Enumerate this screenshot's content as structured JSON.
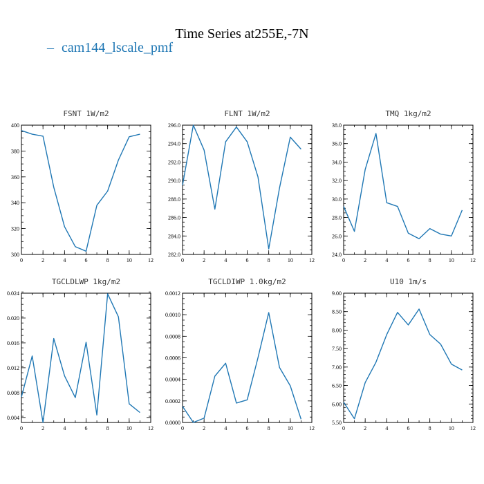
{
  "title": "Time Series at255E,-7N",
  "legend": {
    "marker": "–",
    "label": "cam144_lscale_pmf",
    "color": "#1f77b4"
  },
  "chart_data": [
    {
      "type": "line",
      "title": "FSNT   1W/m2",
      "x": [
        0,
        1,
        2,
        3,
        4,
        5,
        6,
        7,
        8,
        9,
        10,
        11
      ],
      "series": [
        {
          "values": [
            395.8,
            393.0,
            391.5,
            352.0,
            321.5,
            306.0,
            302.5,
            338.0,
            349.0,
            373.0,
            391.0,
            393.0
          ]
        }
      ],
      "xlim": [
        0,
        12
      ],
      "ylim": [
        300,
        400
      ],
      "xticks": [
        0,
        2,
        4,
        6,
        8,
        10,
        12
      ],
      "xtick_labels": [
        "0",
        "2",
        "4",
        "6",
        "8",
        "10",
        "12"
      ],
      "yticks": [
        300,
        320,
        340,
        360,
        380,
        400
      ],
      "ytick_labels": [
        "300",
        "320",
        "340",
        "360",
        "380",
        "400"
      ],
      "xminor": 1,
      "yminor": 5,
      "color": "#1f77b4"
    },
    {
      "type": "line",
      "title": "FLNT   1W/m2",
      "x": [
        0,
        1,
        2,
        3,
        4,
        5,
        6,
        7,
        8,
        9,
        10,
        11
      ],
      "series": [
        {
          "values": [
            289.5,
            296.0,
            293.3,
            286.9,
            294.2,
            295.8,
            294.2,
            290.4,
            282.6,
            289.2,
            294.7,
            293.4
          ]
        }
      ],
      "xlim": [
        0,
        12
      ],
      "ylim": [
        282,
        296
      ],
      "xticks": [
        0,
        2,
        4,
        6,
        8,
        10,
        12
      ],
      "xtick_labels": [
        "0",
        "2",
        "4",
        "6",
        "8",
        "10",
        "12"
      ],
      "yticks": [
        282,
        284,
        286,
        288,
        290,
        292,
        294,
        296
      ],
      "ytick_labels": [
        "282.0",
        "284.0",
        "286.0",
        "288.0",
        "290.0",
        "292.0",
        "294.0",
        "296.0"
      ],
      "xminor": 1,
      "yminor": 0.5,
      "color": "#1f77b4"
    },
    {
      "type": "line",
      "title": "TMQ   1kg/m2",
      "x": [
        0,
        1,
        2,
        3,
        4,
        5,
        6,
        7,
        8,
        9,
        10,
        11
      ],
      "series": [
        {
          "values": [
            29.2,
            26.5,
            33.2,
            37.1,
            29.6,
            29.2,
            26.3,
            25.7,
            26.8,
            26.2,
            26.0,
            28.8
          ]
        }
      ],
      "xlim": [
        0,
        12
      ],
      "ylim": [
        24,
        38
      ],
      "xticks": [
        0,
        2,
        4,
        6,
        8,
        10,
        12
      ],
      "xtick_labels": [
        "0",
        "2",
        "4",
        "6",
        "8",
        "10",
        "12"
      ],
      "yticks": [
        24,
        26,
        28,
        30,
        32,
        34,
        36,
        38
      ],
      "ytick_labels": [
        "24.0",
        "26.0",
        "28.0",
        "30.0",
        "32.0",
        "34.0",
        "36.0",
        "38.0"
      ],
      "xminor": 1,
      "yminor": 0.5,
      "color": "#1f77b4"
    },
    {
      "type": "line",
      "title": "TGCLDLWP   1kg/m2",
      "x": [
        0,
        1,
        2,
        3,
        4,
        5,
        6,
        7,
        8,
        9,
        10,
        11
      ],
      "series": [
        {
          "values": [
            0.0073,
            0.0139,
            0.0032,
            0.0167,
            0.0107,
            0.0072,
            0.0161,
            0.0044,
            0.0239,
            0.0202,
            0.0062,
            0.0048
          ]
        }
      ],
      "xlim": [
        0,
        12
      ],
      "ylim": [
        0.0032,
        0.024
      ],
      "xticks": [
        0,
        2,
        4,
        6,
        8,
        10,
        12
      ],
      "xtick_labels": [
        "0",
        "2",
        "4",
        "6",
        "8",
        "10",
        "12"
      ],
      "yticks": [
        0.004,
        0.008,
        0.012,
        0.016,
        0.02,
        0.024
      ],
      "ytick_labels": [
        "0.004",
        "0.008",
        "0.012",
        "0.016",
        "0.020",
        "0.024"
      ],
      "xminor": 1,
      "yminor": 0.001,
      "color": "#1f77b4"
    },
    {
      "type": "line",
      "title": "TGCLDIWP   1.0kg/m2",
      "x": [
        0,
        1,
        2,
        3,
        4,
        5,
        6,
        7,
        8,
        9,
        10,
        11
      ],
      "series": [
        {
          "values": [
            0.00015,
            0.0,
            4e-05,
            0.00043,
            0.00055,
            0.00018,
            0.00021,
            0.0006,
            0.00102,
            0.00051,
            0.00034,
            3e-05
          ]
        }
      ],
      "xlim": [
        0,
        12
      ],
      "ylim": [
        0,
        0.0012
      ],
      "xticks": [
        0,
        2,
        4,
        6,
        8,
        10,
        12
      ],
      "xtick_labels": [
        "0",
        "2",
        "4",
        "6",
        "8",
        "10",
        "12"
      ],
      "yticks": [
        0,
        0.0002,
        0.0004,
        0.0006,
        0.0008,
        0.001,
        0.0012
      ],
      "ytick_labels": [
        "0.0000",
        "0.0002",
        "0.0004",
        "0.0006",
        "0.0008",
        "0.0010",
        "0.0012"
      ],
      "xminor": 1,
      "yminor": 5e-05,
      "color": "#1f77b4"
    },
    {
      "type": "line",
      "title": "U10   1m/s",
      "x": [
        0,
        1,
        2,
        3,
        4,
        5,
        6,
        7,
        8,
        9,
        10,
        11
      ],
      "series": [
        {
          "values": [
            6.05,
            5.6,
            6.58,
            7.13,
            7.88,
            8.48,
            8.14,
            8.57,
            7.88,
            7.62,
            7.08,
            6.92
          ]
        }
      ],
      "xlim": [
        0,
        12
      ],
      "ylim": [
        5.5,
        9.0
      ],
      "xticks": [
        0,
        2,
        4,
        6,
        8,
        10,
        12
      ],
      "xtick_labels": [
        "0",
        "2",
        "4",
        "6",
        "8",
        "10",
        "12"
      ],
      "yticks": [
        5.5,
        6.0,
        6.5,
        7.0,
        7.5,
        8.0,
        8.5,
        9.0
      ],
      "ytick_labels": [
        "5.50",
        "6.00",
        "6.50",
        "7.00",
        "7.50",
        "8.00",
        "8.50",
        "9.00"
      ],
      "xminor": 1,
      "yminor": 0.1,
      "color": "#1f77b4"
    }
  ]
}
